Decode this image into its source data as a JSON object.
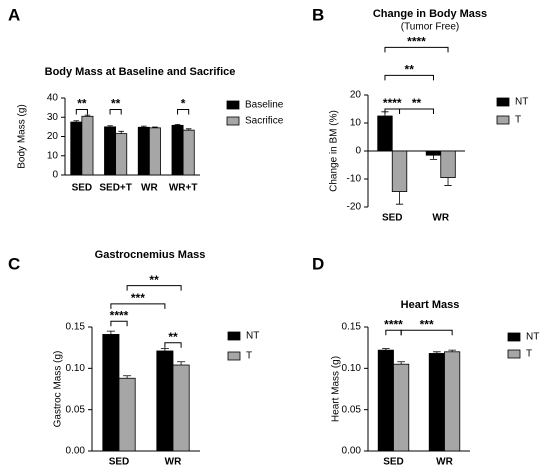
{
  "chart_data": [
    {
      "type": "bar",
      "panel": "A",
      "title": "Body Mass at Baseline and Sacrifice",
      "y_label": "Body Mass (g)",
      "categories": [
        "SED",
        "SED+T",
        "WR",
        "WR+T"
      ],
      "series": [
        {
          "name": "Baseline",
          "color": "#000000",
          "values": [
            27.5,
            25,
            24.8,
            25.8
          ],
          "errors": [
            0.7,
            0.6,
            0.6,
            0.5
          ]
        },
        {
          "name": "Sacrifice",
          "color": "#a6a6a6",
          "values": [
            30.5,
            21.5,
            24.5,
            23.3
          ],
          "errors": [
            0.6,
            1.2,
            0.4,
            0.7
          ]
        }
      ],
      "ylim": [
        0,
        40
      ],
      "yticks": [
        0,
        10,
        20,
        30,
        40
      ],
      "annotations": [
        "**",
        "**",
        "*"
      ]
    },
    {
      "type": "bar",
      "panel": "B",
      "title": "Change in Body Mass",
      "subtitle": "(Tumor Free)",
      "y_label": "Change in BM (%)",
      "categories": [
        "SED",
        "WR"
      ],
      "series": [
        {
          "name": "NT",
          "color": "#000000",
          "values": [
            12.5,
            -1.5
          ],
          "errors": [
            1.5,
            1.5
          ]
        },
        {
          "name": "T",
          "color": "#a6a6a6",
          "values": [
            -14.5,
            -9.5
          ],
          "errors": [
            4.5,
            2.8
          ]
        }
      ],
      "ylim": [
        -20,
        20
      ],
      "yticks": [
        -20,
        -10,
        0,
        10,
        20
      ],
      "annotations": [
        "****",
        "**",
        "**",
        "****"
      ]
    },
    {
      "type": "bar",
      "panel": "C",
      "title": "Gastrocnemius Mass",
      "y_label": "Gastroc Mass (g)",
      "categories": [
        "SED",
        "WR"
      ],
      "series": [
        {
          "name": "NT",
          "color": "#000000",
          "values": [
            0.141,
            0.121
          ],
          "errors": [
            0.004,
            0.003
          ]
        },
        {
          "name": "T",
          "color": "#a6a6a6",
          "values": [
            0.088,
            0.104
          ],
          "errors": [
            0.003,
            0.004
          ]
        }
      ],
      "ylim": [
        0,
        0.15
      ],
      "yticks": [
        {
          "value": 0,
          "label": "0.00"
        },
        {
          "value": 0.05,
          "label": "0.05"
        },
        {
          "value": 0.1,
          "label": "0.10"
        },
        {
          "value": 0.15,
          "label": "0.15"
        }
      ],
      "annotations": [
        "****",
        "**",
        "***",
        "**"
      ]
    },
    {
      "type": "bar",
      "panel": "D",
      "title": "Heart Mass",
      "y_label": "Heart Mass (g)",
      "categories": [
        "SED",
        "WR"
      ],
      "series": [
        {
          "name": "NT",
          "color": "#000000",
          "values": [
            0.122,
            0.118
          ],
          "errors": [
            0.002,
            0.002
          ]
        },
        {
          "name": "T",
          "color": "#a6a6a6",
          "values": [
            0.105,
            0.12
          ],
          "errors": [
            0.003,
            0.002
          ]
        }
      ],
      "ylim": [
        0,
        0.15
      ],
      "yticks": [
        {
          "value": 0,
          "label": "0.00"
        },
        {
          "value": 0.05,
          "label": "0.05"
        },
        {
          "value": 0.1,
          "label": "0.10"
        },
        {
          "value": 0.15,
          "label": "0.15"
        }
      ],
      "annotations": [
        "****",
        "***"
      ]
    }
  ]
}
